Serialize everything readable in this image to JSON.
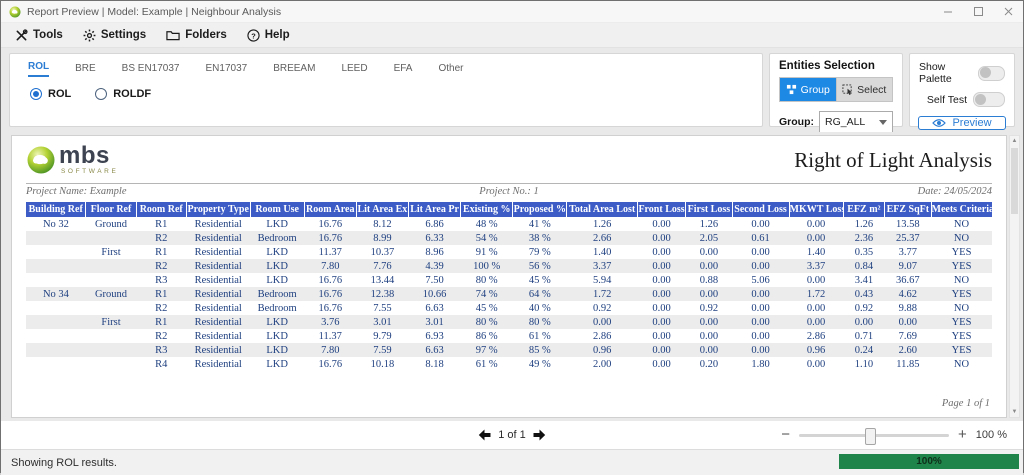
{
  "window": {
    "title": "Report Preview | Model: Example | Neighbour Analysis"
  },
  "menu": {
    "items": [
      {
        "label": "Tools",
        "icon": "tools-icon"
      },
      {
        "label": "Settings",
        "icon": "gear-icon"
      },
      {
        "label": "Folders",
        "icon": "folder-icon"
      },
      {
        "label": "Help",
        "icon": "help-icon"
      }
    ]
  },
  "tabs": [
    {
      "label": "ROL",
      "active": true
    },
    {
      "label": "BRE",
      "active": false
    },
    {
      "label": "BS EN17037",
      "active": false
    },
    {
      "label": "EN17037",
      "active": false
    },
    {
      "label": "BREEAM",
      "active": false
    },
    {
      "label": "LEED",
      "active": false
    },
    {
      "label": "EFA",
      "active": false
    },
    {
      "label": "Other",
      "active": false
    }
  ],
  "radios": [
    {
      "label": "ROL",
      "selected": true
    },
    {
      "label": "ROLDF",
      "selected": false
    }
  ],
  "entities": {
    "title": "Entities Selection",
    "group_button": "Group",
    "select_button": "Select",
    "group_label": "Group:",
    "group_value": "RG_ALL"
  },
  "side_controls": {
    "show_palette": "Show Palette",
    "self_test": "Self Test",
    "preview": "Preview"
  },
  "report": {
    "logo_text": "mbs",
    "logo_subtext": "SOFTWARE",
    "title": "Right of Light Analysis",
    "project_name": "Project Name: Example",
    "project_no": "Project No.: 1",
    "date": "Date: 24/05/2024",
    "page_label": "Page 1 of 1",
    "table": {
      "headers": [
        "Building Ref",
        "Floor Ref",
        "Room Ref",
        "Property Type",
        "Room Use",
        "Room Area",
        "Lit Area Ex",
        "Lit Area Pr",
        "Existing %",
        "Proposed %",
        "Total Area Lost",
        "Front Loss",
        "First Loss",
        "Second Loss",
        "MKWT Loss",
        "EFZ m²",
        "EFZ SqFt",
        "Meets Criteria"
      ],
      "rows": [
        [
          "No 32",
          "Ground",
          "R1",
          "Residential",
          "LKD",
          "16.76",
          "8.12",
          "6.86",
          "48 %",
          "41 %",
          "1.26",
          "0.00",
          "1.26",
          "0.00",
          "0.00",
          "1.26",
          "13.58",
          "NO"
        ],
        [
          "",
          "",
          "R2",
          "Residential",
          "Bedroom",
          "16.76",
          "8.99",
          "6.33",
          "54 %",
          "38 %",
          "2.66",
          "0.00",
          "2.05",
          "0.61",
          "0.00",
          "2.36",
          "25.37",
          "NO"
        ],
        [
          "",
          "First",
          "R1",
          "Residential",
          "LKD",
          "11.37",
          "10.37",
          "8.96",
          "91 %",
          "79 %",
          "1.40",
          "0.00",
          "0.00",
          "0.00",
          "1.40",
          "0.35",
          "3.77",
          "YES"
        ],
        [
          "",
          "",
          "R2",
          "Residential",
          "LKD",
          "7.80",
          "7.76",
          "4.39",
          "100 %",
          "56 %",
          "3.37",
          "0.00",
          "0.00",
          "0.00",
          "3.37",
          "0.84",
          "9.07",
          "YES"
        ],
        [
          "",
          "",
          "R3",
          "Residential",
          "LKD",
          "16.76",
          "13.44",
          "7.50",
          "80 %",
          "45 %",
          "5.94",
          "0.00",
          "0.88",
          "5.06",
          "0.00",
          "3.41",
          "36.67",
          "NO"
        ],
        [
          "No 34",
          "Ground",
          "R1",
          "Residential",
          "Bedroom",
          "16.76",
          "12.38",
          "10.66",
          "74 %",
          "64 %",
          "1.72",
          "0.00",
          "0.00",
          "0.00",
          "1.72",
          "0.43",
          "4.62",
          "YES"
        ],
        [
          "",
          "",
          "R2",
          "Residential",
          "Bedroom",
          "16.76",
          "7.55",
          "6.63",
          "45 %",
          "40 %",
          "0.92",
          "0.00",
          "0.92",
          "0.00",
          "0.00",
          "0.92",
          "9.88",
          "NO"
        ],
        [
          "",
          "First",
          "R1",
          "Residential",
          "LKD",
          "3.76",
          "3.01",
          "3.01",
          "80 %",
          "80 %",
          "0.00",
          "0.00",
          "0.00",
          "0.00",
          "0.00",
          "0.00",
          "0.00",
          "YES"
        ],
        [
          "",
          "",
          "R2",
          "Residential",
          "LKD",
          "11.37",
          "9.79",
          "6.93",
          "86 %",
          "61 %",
          "2.86",
          "0.00",
          "0.00",
          "0.00",
          "2.86",
          "0.71",
          "7.69",
          "YES"
        ],
        [
          "",
          "",
          "R3",
          "Residential",
          "LKD",
          "7.80",
          "7.59",
          "6.63",
          "97 %",
          "85 %",
          "0.96",
          "0.00",
          "0.00",
          "0.00",
          "0.96",
          "0.24",
          "2.60",
          "YES"
        ],
        [
          "",
          "",
          "R4",
          "Residential",
          "LKD",
          "16.76",
          "10.18",
          "8.18",
          "61 %",
          "49 %",
          "2.00",
          "0.00",
          "0.20",
          "1.80",
          "0.00",
          "1.10",
          "11.85",
          "NO"
        ]
      ]
    }
  },
  "pager": {
    "label": "1 of 1"
  },
  "zoom_control": {
    "minus": "−",
    "plus": "+",
    "level": "100 %"
  },
  "status": {
    "message": "Showing ROL results.",
    "progress_label": "100%"
  },
  "icons": {
    "help_glyph": "?"
  },
  "colors": {
    "table_header_blue": "#3D5CC5",
    "accent_blue": "#2B7CD3",
    "group_button_blue": "#1E88E5",
    "progress_green": "#1E8449",
    "row_alt_gray": "#ECECEC",
    "data_navy": "#1F4080"
  }
}
